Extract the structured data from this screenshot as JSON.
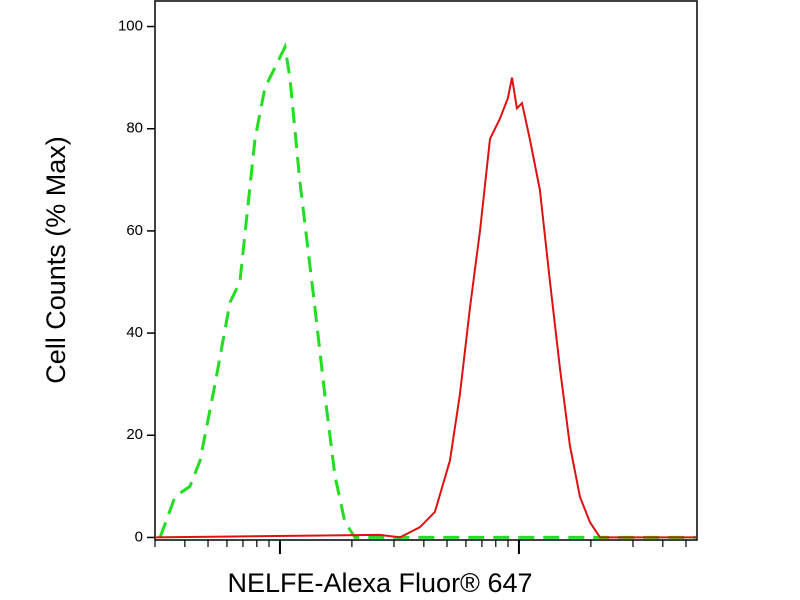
{
  "chart_data": {
    "type": "line",
    "y_label": "Cell Counts (% Max)",
    "x_label": "NELFE-Alexa Fluor® 647",
    "xscale": "log",
    "xlim": [
      30,
      5560
    ],
    "xticks": [
      100,
      1000
    ],
    "ylim": [
      -0.5,
      105
    ],
    "yticks": [
      0,
      20,
      40,
      60,
      80,
      100
    ],
    "series": [
      {
        "color": "#22dd22",
        "dash": true,
        "x": [
          31.5,
          36.4,
          42.0,
          46.3,
          53.5,
          61.8,
          68.0,
          78.6,
          86.5,
          95.3,
          105,
          110,
          121,
          140,
          154,
          170,
          187,
          206,
          5500
        ],
        "values": [
          0,
          8,
          10,
          15,
          30,
          46,
          50,
          78,
          88,
          92,
          96,
          90,
          70,
          45,
          28,
          12,
          3,
          0,
          0
        ]
      },
      {
        "color": "#dd1111",
        "dash": false,
        "x": [
          30,
          262,
          318,
          385,
          445,
          514,
          566,
          624,
          687,
          757,
          833,
          899,
          935,
          981,
          1030,
          1110,
          1224,
          1349,
          1486,
          1634,
          1800,
          1982,
          2183,
          5500
        ],
        "values": [
          0,
          0.5,
          0,
          2,
          5,
          15,
          28,
          45,
          60,
          78,
          82,
          86,
          90,
          84,
          85,
          78,
          68,
          50,
          33,
          18,
          8,
          3,
          0,
          0
        ]
      }
    ]
  }
}
